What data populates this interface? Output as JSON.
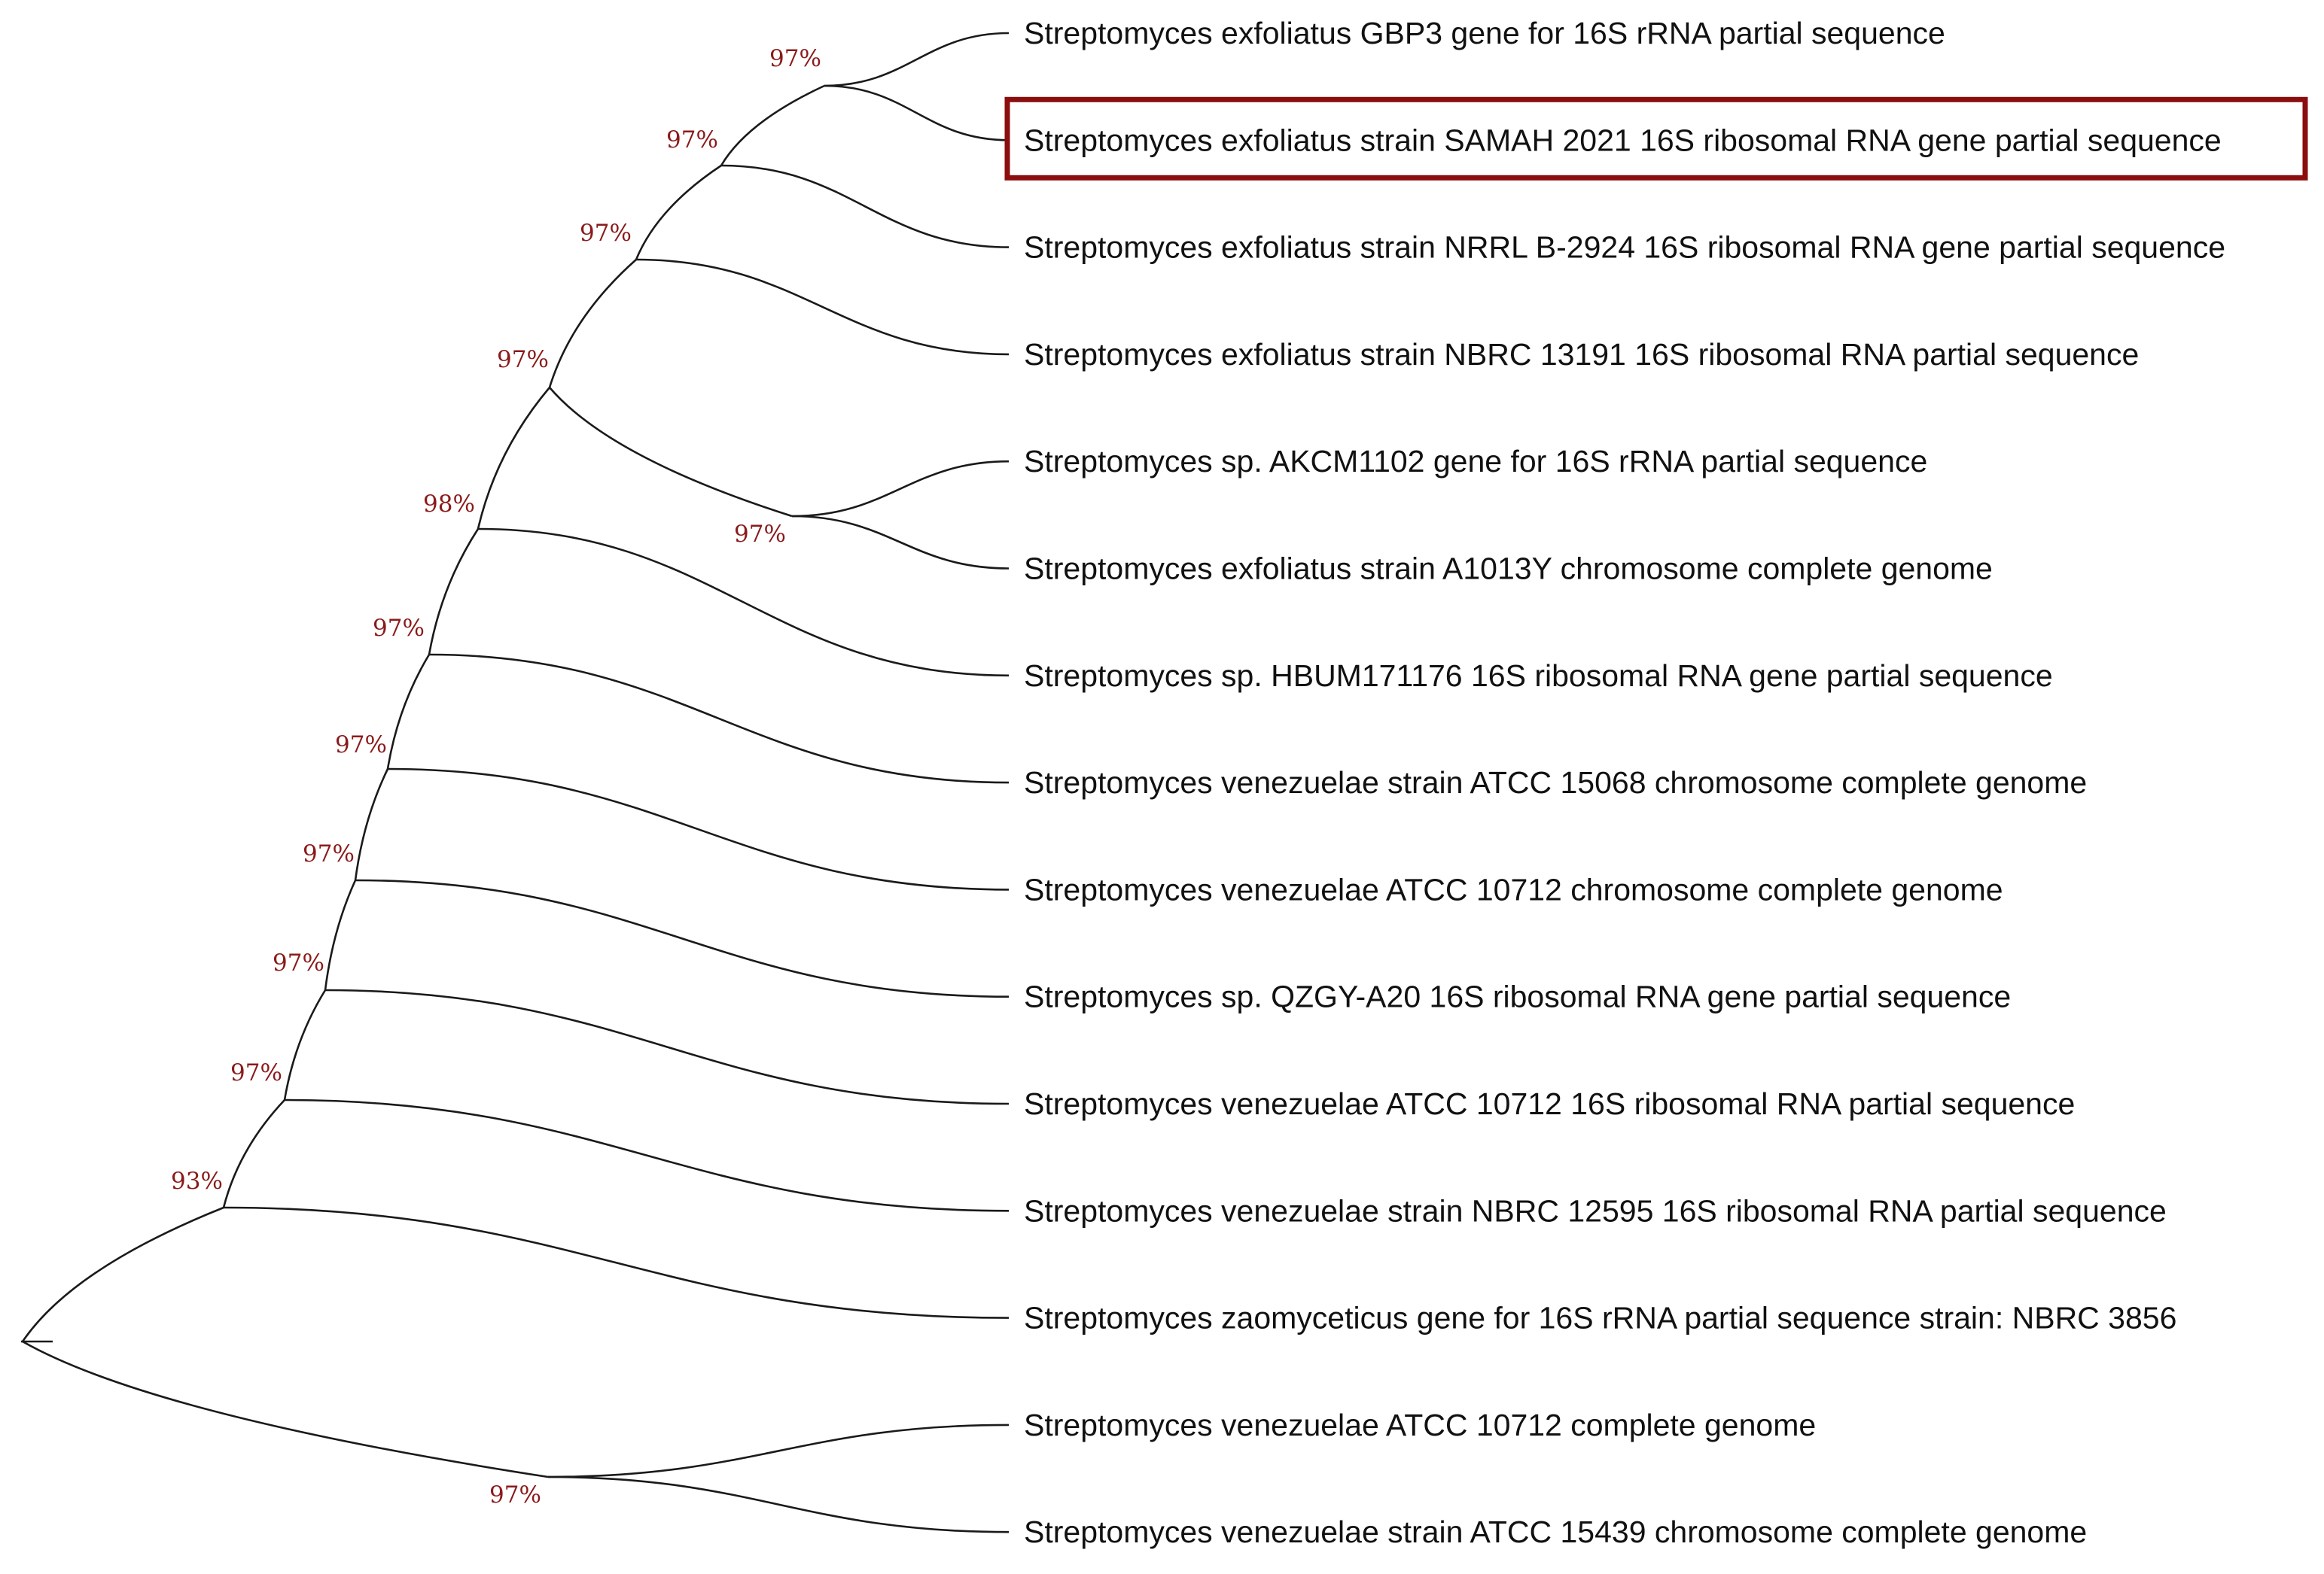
{
  "figure": {
    "accent_color": "#8b0e0e",
    "support_color": "#8b1a1a",
    "line_color": "#1a1a1a",
    "highlighted_leaf": "Streptomyces exfoliatus strain SAMAH 2021 16S ribosomal RNA gene partial sequence"
  },
  "leaves": [
    "Streptomyces exfoliatus GBP3 gene for 16S rRNA partial sequence",
    "Streptomyces exfoliatus strain SAMAH 2021 16S ribosomal RNA gene partial sequence",
    "Streptomyces exfoliatus strain NRRL B-2924 16S ribosomal RNA gene partial sequence",
    "Streptomyces exfoliatus strain NBRC 13191 16S ribosomal RNA partial sequence",
    "Streptomyces sp. AKCM1102 gene for 16S rRNA partial sequence",
    "Streptomyces exfoliatus strain A1013Y chromosome complete genome",
    "Streptomyces sp. HBUM171176 16S ribosomal RNA gene partial sequence",
    "Streptomyces venezuelae strain ATCC 15068 chromosome complete genome",
    "Streptomyces venezuelae ATCC 10712 chromosome complete genome",
    "Streptomyces sp. QZGY-A20 16S ribosomal RNA gene partial sequence",
    "Streptomyces venezuelae ATCC 10712 16S ribosomal RNA partial sequence",
    "Streptomyces venezuelae strain NBRC 12595 16S ribosomal RNA partial sequence",
    "Streptomyces zaomyceticus gene for 16S rRNA partial sequence strain: NBRC 3856",
    "Streptomyces venezuelae ATCC 10712 complete genome",
    "Streptomyces venezuelae strain ATCC 15439 chromosome complete genome"
  ],
  "clades": [
    {
      "node": "n1",
      "children": [
        "leaf:0",
        "leaf:1"
      ],
      "support": "97%"
    },
    {
      "node": "n2",
      "children": [
        "node:n1",
        "leaf:2"
      ],
      "support": "97%"
    },
    {
      "node": "n3",
      "children": [
        "node:n2",
        "leaf:3"
      ],
      "support": "97%"
    },
    {
      "node": "n4",
      "children": [
        "leaf:4",
        "leaf:5"
      ],
      "support": "97%"
    },
    {
      "node": "n5",
      "children": [
        "node:n3",
        "node:n4"
      ],
      "support": "97%"
    },
    {
      "node": "n6",
      "children": [
        "node:n5",
        "leaf:6"
      ],
      "support": "98%"
    },
    {
      "node": "n7",
      "children": [
        "node:n6",
        "leaf:7"
      ],
      "support": "97%"
    },
    {
      "node": "n8",
      "children": [
        "node:n7",
        "leaf:8"
      ],
      "support": "97%"
    },
    {
      "node": "n9",
      "children": [
        "node:n8",
        "leaf:9"
      ],
      "support": "97%"
    },
    {
      "node": "n10",
      "children": [
        "node:n9",
        "leaf:10"
      ],
      "support": "97%"
    },
    {
      "node": "n11",
      "children": [
        "node:n10",
        "leaf:11"
      ],
      "support": "97%"
    },
    {
      "node": "n12",
      "children": [
        "node:n11",
        "leaf:12"
      ],
      "support": "93%"
    },
    {
      "node": "n13",
      "children": [
        "leaf:13",
        "leaf:14"
      ],
      "support": "97%"
    },
    {
      "node": "root",
      "children": [
        "node:n12",
        "node:n13"
      ],
      "support": ""
    }
  ]
}
